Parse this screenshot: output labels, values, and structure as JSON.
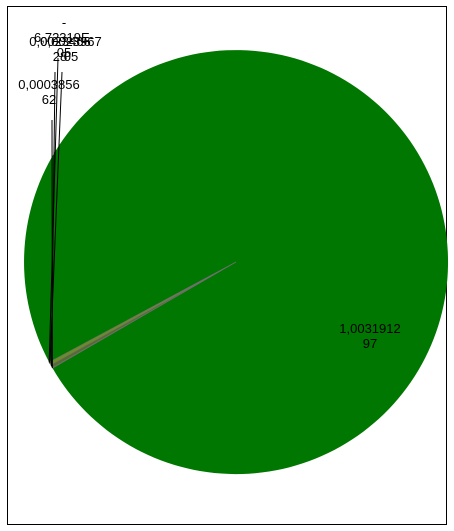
{
  "chart_data": {
    "type": "pie",
    "slices": [
      {
        "label_lines": [
          "1,0031912",
          "97"
        ],
        "value": 1.003191297,
        "color": "#007700"
      },
      {
        "label_lines": [
          "0,0003856",
          "62"
        ],
        "value": 0.000385662,
        "color": "#8b8b8b"
      },
      {
        "label_lines": [
          "0,0023466",
          "28"
        ],
        "value": 0.002346628,
        "color": "#556b2f"
      },
      {
        "label_lines": [
          "0,0023967",
          "05"
        ],
        "value": 0.002396705,
        "color": "#6b8e23"
      },
      {
        "label_lines": [
          "-",
          "6,72319E-",
          "05"
        ],
        "value": -6.72319e-05,
        "color": "#3a5f0b"
      }
    ],
    "legend": "none",
    "title": ""
  }
}
